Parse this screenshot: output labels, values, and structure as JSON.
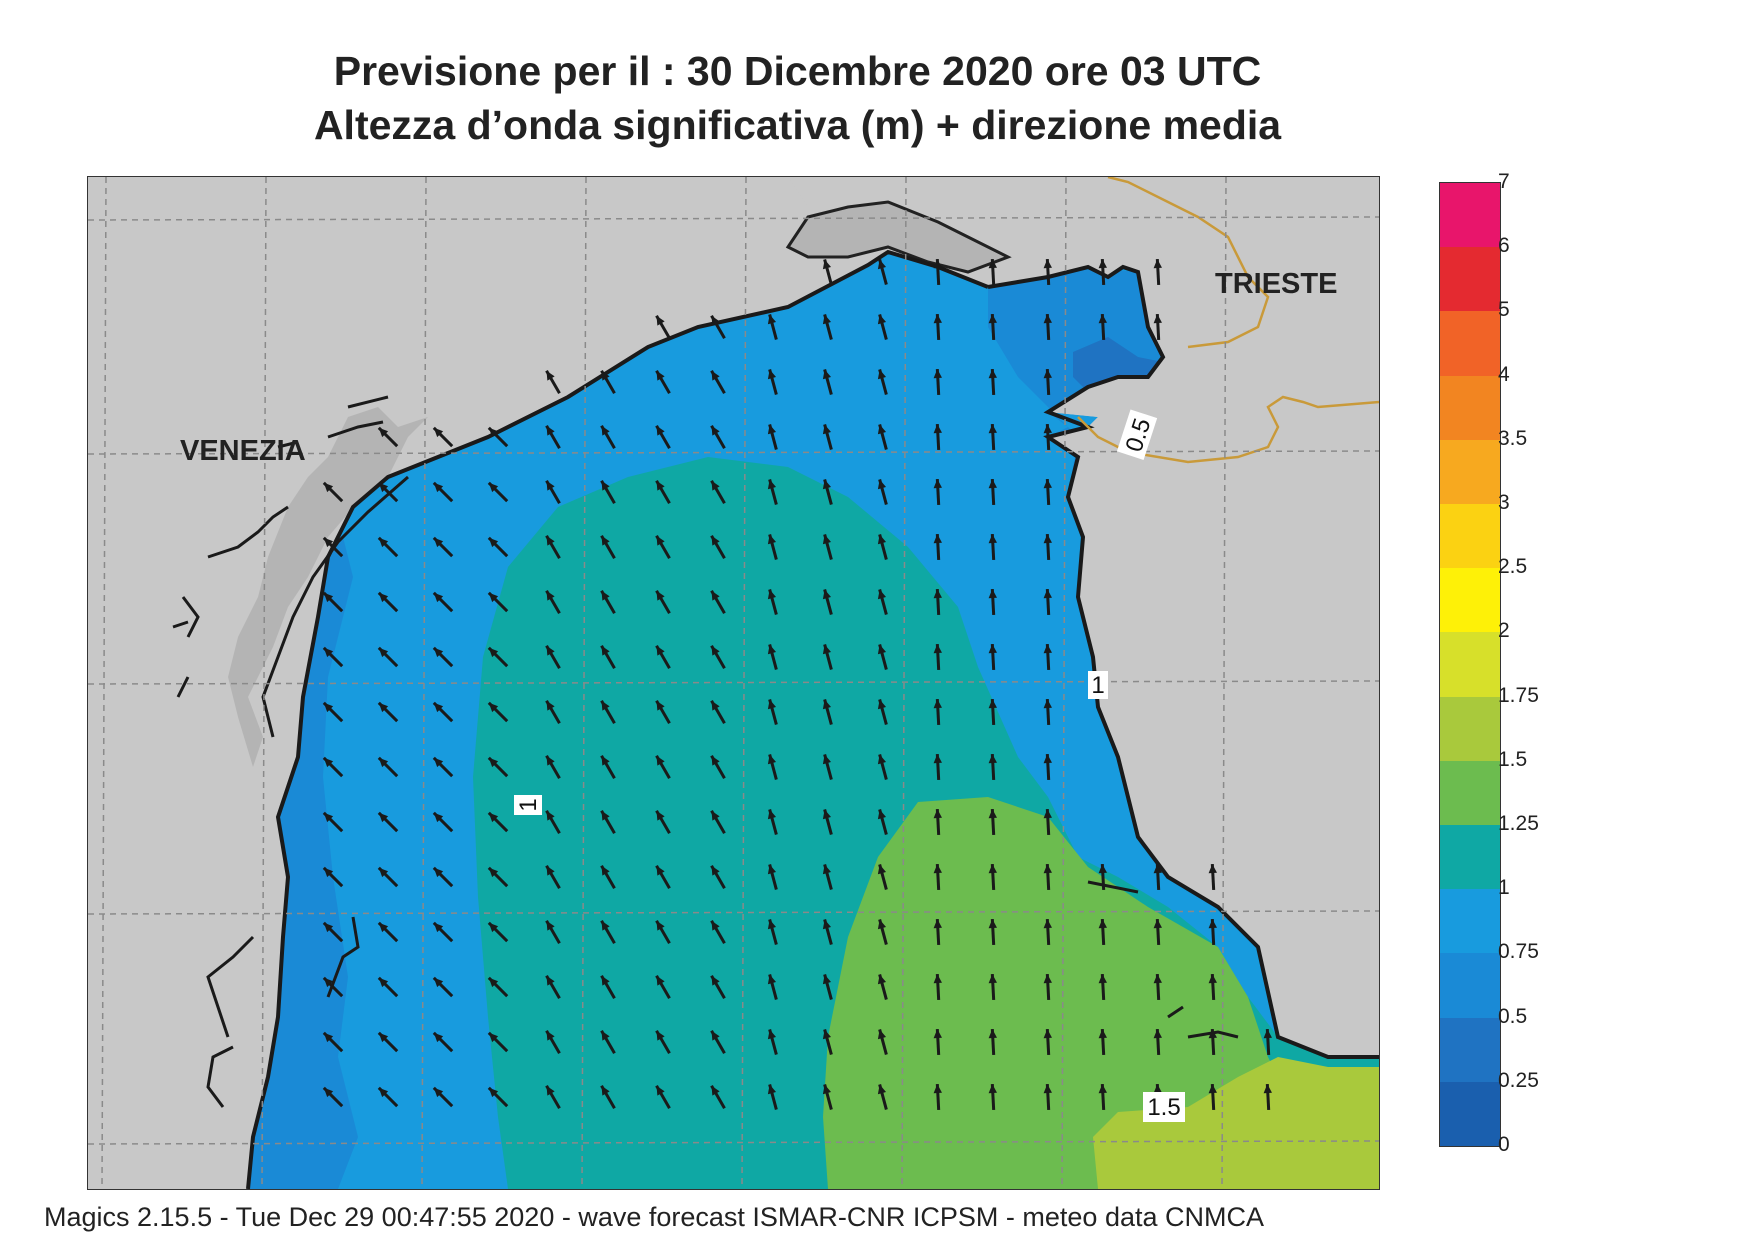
{
  "title": {
    "line1": "Previsione per il  :  30 Dicembre  2020   ore 03 UTC",
    "line2": "Altezza d’onda significativa (m) + direzione media"
  },
  "map": {
    "cities": {
      "venezia": "VENEZIA",
      "trieste": "TRIESTE"
    },
    "contour_labels": {
      "half": "0.5",
      "one_east": "1",
      "one_west": "1",
      "one_five": "1.5"
    },
    "wave_colors": {
      "land": "#c8c8c8",
      "h_025_05": "#1f73c2",
      "h_05_075": "#1a8ad6",
      "h_075_1": "#189bde",
      "h_1_125": "#0fa8a4",
      "h_125_15": "#6cbc4f",
      "h_15_175": "#a9c93c",
      "h_175_2": "#d5df2a"
    },
    "arrow_direction": "north / north-northwest (mean wave direction)"
  },
  "legend": {
    "labels": [
      "7",
      "6",
      "5",
      "4",
      "3.5",
      "3",
      "2.5",
      "2",
      "1.75",
      "1.5",
      "1.25",
      "1",
      "0.75",
      "0.5",
      "0.25",
      "0"
    ],
    "colors": [
      "#e8156b",
      "#e42a30",
      "#f16327",
      "#f28521",
      "#f7a91f",
      "#fbd212",
      "#fef107",
      "#d7e02a",
      "#a9c93c",
      "#6cbc4f",
      "#0fa8a4",
      "#189bde",
      "#1a8ad6",
      "#1f73c2",
      "#1a5fae"
    ]
  },
  "footer": "Magics 2.15.5 - Tue Dec 29 00:47:55 2020 - wave forecast  ISMAR-CNR  ICPSM - meteo data   CNMCA"
}
